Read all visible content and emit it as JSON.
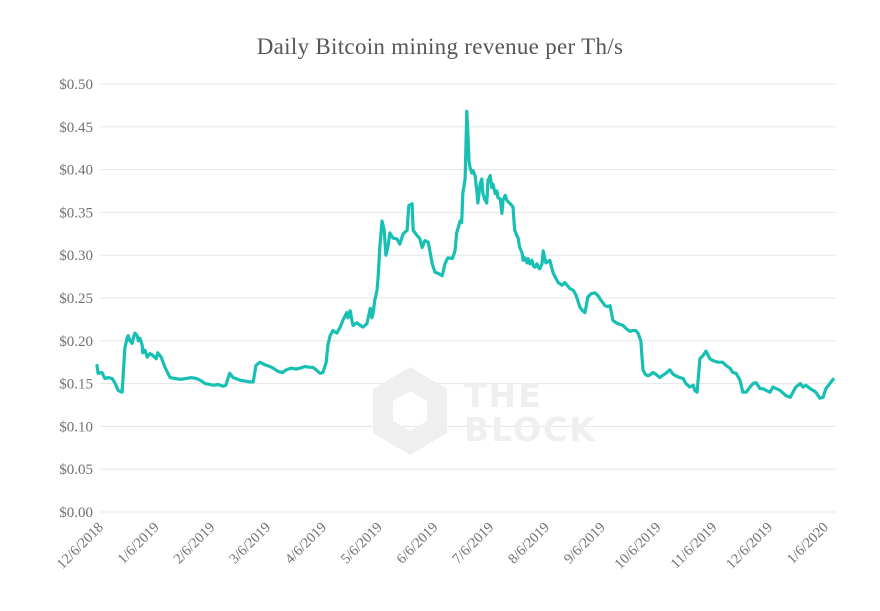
{
  "page": {
    "background": "#ffffff"
  },
  "watermark": {
    "line1": "THE",
    "line2": "BLOCK",
    "logo": "hexagon-block",
    "color": "#efeff0"
  },
  "colors": {
    "line": "#18bfb3",
    "grid": "#e4e5e7",
    "title_text": "#54565a",
    "axis_text": "#6e7176",
    "watermark": "#efeff0"
  },
  "chart_data": {
    "type": "line",
    "title": "Daily Bitcoin mining revenue per Th/s",
    "xlabel": "",
    "ylabel": "",
    "legend": "none",
    "grid": "horizontal-only",
    "ylim": [
      0,
      0.5
    ],
    "y_tick_values": [
      0,
      0.05,
      0.1,
      0.15,
      0.2,
      0.25,
      0.3,
      0.35,
      0.4,
      0.45,
      0.5
    ],
    "y_tick_labels": [
      "$0.00",
      "$0.05",
      "$0.10",
      "$0.15",
      "$0.20",
      "$0.25",
      "$0.30",
      "$0.35",
      "$0.40",
      "$0.45",
      "$0.50"
    ],
    "x_tick_labels": [
      "12/6/2018",
      "1/6/2019",
      "2/6/2019",
      "3/6/2019",
      "4/6/2019",
      "5/6/2019",
      "6/6/2019",
      "7/6/2019",
      "8/6/2019",
      "9/6/2019",
      "10/6/2019",
      "11/6/2019",
      "12/6/2019",
      "1/6/2020"
    ],
    "x_unit": "months from 12/6/2018",
    "x_range_months": [
      0,
      13.2
    ],
    "series": [
      {
        "name": "Daily Bitcoin mining revenue per Th/s",
        "color": "#18bfb3",
        "points": [
          [
            0,
            0.171
          ],
          [
            0.02,
            0.162
          ],
          [
            0.09,
            0.163
          ],
          [
            0.14,
            0.156
          ],
          [
            0.2,
            0.157
          ],
          [
            0.27,
            0.156
          ],
          [
            0.32,
            0.151
          ],
          [
            0.38,
            0.142
          ],
          [
            0.45,
            0.14
          ],
          [
            0.5,
            0.192
          ],
          [
            0.54,
            0.203
          ],
          [
            0.56,
            0.206
          ],
          [
            0.59,
            0.2
          ],
          [
            0.63,
            0.197
          ],
          [
            0.65,
            0.203
          ],
          [
            0.68,
            0.209
          ],
          [
            0.72,
            0.206
          ],
          [
            0.74,
            0.2
          ],
          [
            0.77,
            0.203
          ],
          [
            0.81,
            0.195
          ],
          [
            0.82,
            0.186
          ],
          [
            0.86,
            0.189
          ],
          [
            0.9,
            0.181
          ],
          [
            0.95,
            0.185
          ],
          [
            1,
            0.183
          ],
          [
            1.06,
            0.179
          ],
          [
            1.09,
            0.186
          ],
          [
            1.15,
            0.181
          ],
          [
            1.22,
            0.169
          ],
          [
            1.31,
            0.157
          ],
          [
            1.4,
            0.156
          ],
          [
            1.49,
            0.155
          ],
          [
            1.6,
            0.156
          ],
          [
            1.69,
            0.157
          ],
          [
            1.78,
            0.156
          ],
          [
            1.85,
            0.154
          ],
          [
            1.94,
            0.15
          ],
          [
            2.03,
            0.149
          ],
          [
            2.08,
            0.148
          ],
          [
            2.17,
            0.149
          ],
          [
            2.26,
            0.147
          ],
          [
            2.31,
            0.148
          ],
          [
            2.38,
            0.162
          ],
          [
            2.44,
            0.157
          ],
          [
            2.49,
            0.156
          ],
          [
            2.56,
            0.154
          ],
          [
            2.65,
            0.153
          ],
          [
            2.74,
            0.152
          ],
          [
            2.8,
            0.152
          ],
          [
            2.85,
            0.171
          ],
          [
            2.92,
            0.175
          ],
          [
            3.01,
            0.172
          ],
          [
            3.1,
            0.17
          ],
          [
            3.16,
            0.168
          ],
          [
            3.25,
            0.164
          ],
          [
            3.33,
            0.163
          ],
          [
            3.39,
            0.166
          ],
          [
            3.48,
            0.168
          ],
          [
            3.57,
            0.167
          ],
          [
            3.64,
            0.168
          ],
          [
            3.73,
            0.17
          ],
          [
            3.82,
            0.169
          ],
          [
            3.87,
            0.169
          ],
          [
            3.93,
            0.166
          ],
          [
            4,
            0.162
          ],
          [
            4.05,
            0.163
          ],
          [
            4.11,
            0.175
          ],
          [
            4.14,
            0.195
          ],
          [
            4.18,
            0.206
          ],
          [
            4.23,
            0.212
          ],
          [
            4.3,
            0.209
          ],
          [
            4.36,
            0.216
          ],
          [
            4.41,
            0.224
          ],
          [
            4.48,
            0.233
          ],
          [
            4.5,
            0.227
          ],
          [
            4.54,
            0.235
          ],
          [
            4.57,
            0.224
          ],
          [
            4.59,
            0.218
          ],
          [
            4.66,
            0.221
          ],
          [
            4.72,
            0.218
          ],
          [
            4.77,
            0.216
          ],
          [
            4.84,
            0.22
          ],
          [
            4.9,
            0.238
          ],
          [
            4.93,
            0.227
          ],
          [
            4.95,
            0.232
          ],
          [
            4.98,
            0.247
          ],
          [
            5.02,
            0.259
          ],
          [
            5.04,
            0.274
          ],
          [
            5.07,
            0.309
          ],
          [
            5.11,
            0.34
          ],
          [
            5.15,
            0.329
          ],
          [
            5.18,
            0.3
          ],
          [
            5.22,
            0.311
          ],
          [
            5.25,
            0.326
          ],
          [
            5.31,
            0.32
          ],
          [
            5.38,
            0.319
          ],
          [
            5.43,
            0.313
          ],
          [
            5.49,
            0.325
          ],
          [
            5.56,
            0.329
          ],
          [
            5.59,
            0.358
          ],
          [
            5.65,
            0.36
          ],
          [
            5.67,
            0.329
          ],
          [
            5.74,
            0.323
          ],
          [
            5.79,
            0.319
          ],
          [
            5.83,
            0.309
          ],
          [
            5.88,
            0.317
          ],
          [
            5.94,
            0.315
          ],
          [
            6.01,
            0.29
          ],
          [
            6.06,
            0.28
          ],
          [
            6.11,
            0.279
          ],
          [
            6.19,
            0.276
          ],
          [
            6.24,
            0.29
          ],
          [
            6.29,
            0.297
          ],
          [
            6.37,
            0.296
          ],
          [
            6.42,
            0.305
          ],
          [
            6.45,
            0.326
          ],
          [
            6.51,
            0.34
          ],
          [
            6.54,
            0.338
          ],
          [
            6.56,
            0.372
          ],
          [
            6.6,
            0.389
          ],
          [
            6.63,
            0.468
          ],
          [
            6.65,
            0.442
          ],
          [
            6.67,
            0.41
          ],
          [
            6.69,
            0.402
          ],
          [
            6.72,
            0.396
          ],
          [
            6.74,
            0.399
          ],
          [
            6.78,
            0.393
          ],
          [
            6.81,
            0.375
          ],
          [
            6.83,
            0.361
          ],
          [
            6.87,
            0.383
          ],
          [
            6.9,
            0.389
          ],
          [
            6.92,
            0.372
          ],
          [
            6.96,
            0.364
          ],
          [
            6.99,
            0.361
          ],
          [
            7.01,
            0.387
          ],
          [
            7.05,
            0.393
          ],
          [
            7.08,
            0.379
          ],
          [
            7.1,
            0.383
          ],
          [
            7.14,
            0.372
          ],
          [
            7.17,
            0.375
          ],
          [
            7.19,
            0.367
          ],
          [
            7.23,
            0.366
          ],
          [
            7.26,
            0.349
          ],
          [
            7.28,
            0.364
          ],
          [
            7.32,
            0.37
          ],
          [
            7.35,
            0.364
          ],
          [
            7.41,
            0.36
          ],
          [
            7.44,
            0.358
          ],
          [
            7.46,
            0.356
          ],
          [
            7.49,
            0.329
          ],
          [
            7.53,
            0.323
          ],
          [
            7.55,
            0.32
          ],
          [
            7.58,
            0.309
          ],
          [
            7.62,
            0.303
          ],
          [
            7.64,
            0.294
          ],
          [
            7.67,
            0.297
          ],
          [
            7.71,
            0.291
          ],
          [
            7.73,
            0.296
          ],
          [
            7.76,
            0.29
          ],
          [
            7.8,
            0.294
          ],
          [
            7.82,
            0.288
          ],
          [
            7.85,
            0.286
          ],
          [
            7.89,
            0.29
          ],
          [
            7.91,
            0.286
          ],
          [
            7.94,
            0.284
          ],
          [
            7.98,
            0.29
          ],
          [
            8,
            0.305
          ],
          [
            8.05,
            0.291
          ],
          [
            8.12,
            0.294
          ],
          [
            8.18,
            0.279
          ],
          [
            8.27,
            0.268
          ],
          [
            8.34,
            0.265
          ],
          [
            8.39,
            0.268
          ],
          [
            8.48,
            0.261
          ],
          [
            8.54,
            0.259
          ],
          [
            8.59,
            0.253
          ],
          [
            8.66,
            0.239
          ],
          [
            8.71,
            0.235
          ],
          [
            8.75,
            0.233
          ],
          [
            8.8,
            0.251
          ],
          [
            8.86,
            0.255
          ],
          [
            8.93,
            0.256
          ],
          [
            8.98,
            0.253
          ],
          [
            9.04,
            0.247
          ],
          [
            9.11,
            0.241
          ],
          [
            9.16,
            0.24
          ],
          [
            9.2,
            0.241
          ],
          [
            9.25,
            0.224
          ],
          [
            9.31,
            0.221
          ],
          [
            9.38,
            0.219
          ],
          [
            9.43,
            0.218
          ],
          [
            9.49,
            0.214
          ],
          [
            9.56,
            0.211
          ],
          [
            9.61,
            0.212
          ],
          [
            9.66,
            0.212
          ],
          [
            9.7,
            0.209
          ],
          [
            9.75,
            0.2
          ],
          [
            9.79,
            0.166
          ],
          [
            9.83,
            0.161
          ],
          [
            9.88,
            0.159
          ],
          [
            9.93,
            0.161
          ],
          [
            9.97,
            0.163
          ],
          [
            10.02,
            0.161
          ],
          [
            10.09,
            0.157
          ],
          [
            10.15,
            0.16
          ],
          [
            10.2,
            0.162
          ],
          [
            10.27,
            0.166
          ],
          [
            10.33,
            0.161
          ],
          [
            10.38,
            0.159
          ],
          [
            10.45,
            0.157
          ],
          [
            10.51,
            0.156
          ],
          [
            10.56,
            0.15
          ],
          [
            10.63,
            0.146
          ],
          [
            10.69,
            0.148
          ],
          [
            10.72,
            0.142
          ],
          [
            10.76,
            0.14
          ],
          [
            10.81,
            0.179
          ],
          [
            10.87,
            0.183
          ],
          [
            10.92,
            0.188
          ],
          [
            10.99,
            0.179
          ],
          [
            11.04,
            0.177
          ],
          [
            11.13,
            0.175
          ],
          [
            11.22,
            0.175
          ],
          [
            11.28,
            0.171
          ],
          [
            11.35,
            0.168
          ],
          [
            11.4,
            0.163
          ],
          [
            11.46,
            0.162
          ],
          [
            11.53,
            0.154
          ],
          [
            11.58,
            0.14
          ],
          [
            11.64,
            0.14
          ],
          [
            11.71,
            0.146
          ],
          [
            11.76,
            0.15
          ],
          [
            11.82,
            0.151
          ],
          [
            11.89,
            0.144
          ],
          [
            11.94,
            0.144
          ],
          [
            12,
            0.142
          ],
          [
            12.07,
            0.14
          ],
          [
            12.12,
            0.146
          ],
          [
            12.18,
            0.144
          ],
          [
            12.25,
            0.142
          ],
          [
            12.3,
            0.139
          ],
          [
            12.35,
            0.136
          ],
          [
            12.43,
            0.134
          ],
          [
            12.48,
            0.14
          ],
          [
            12.53,
            0.146
          ],
          [
            12.61,
            0.15
          ],
          [
            12.66,
            0.146
          ],
          [
            12.71,
            0.148
          ],
          [
            12.79,
            0.144
          ],
          [
            12.84,
            0.142
          ],
          [
            12.89,
            0.14
          ],
          [
            12.96,
            0.133
          ],
          [
            13.02,
            0.134
          ],
          [
            13.07,
            0.144
          ],
          [
            13.14,
            0.15
          ],
          [
            13.2,
            0.155
          ]
        ]
      }
    ]
  }
}
